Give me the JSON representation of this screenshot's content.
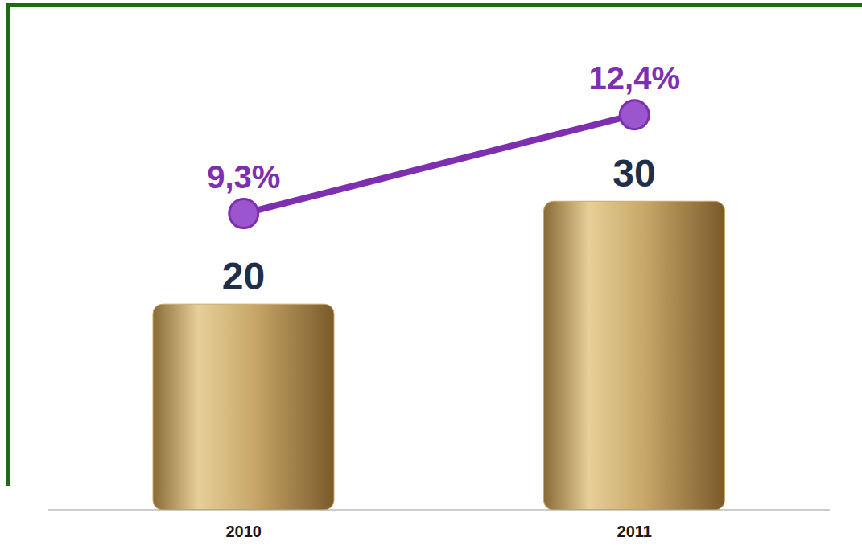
{
  "chart_data": {
    "type": "bar",
    "categories": [
      "2010",
      "2011"
    ],
    "ylim": [
      0,
      48
    ],
    "y2lim": [
      0,
      15.5
    ],
    "tick_labels": "x",
    "data_labels": true,
    "series": [
      {
        "type": "bar",
        "color": "#c9a86a",
        "values": [
          20,
          30
        ]
      },
      {
        "type": "line",
        "axis": "y2",
        "color": "#7e2fb0",
        "marker": "circle",
        "values": [
          9.3,
          12.4
        ],
        "value_labels": [
          "9,3%",
          "12,4%"
        ]
      }
    ]
  }
}
